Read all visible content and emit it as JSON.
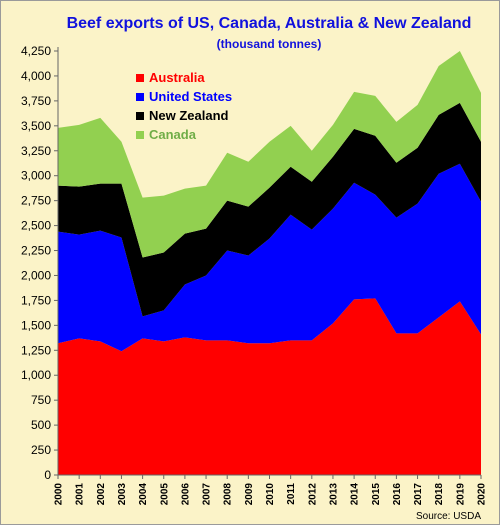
{
  "chart_data": {
    "type": "area",
    "stacked": true,
    "title": "Beef exports of US, Canada, Australia & New Zealand",
    "subtitle": "(thousand tonnes)",
    "source": "Source: USDA",
    "x": [
      2000,
      2001,
      2002,
      2003,
      2004,
      2005,
      2006,
      2007,
      2008,
      2009,
      2010,
      2011,
      2012,
      2013,
      2014,
      2015,
      2016,
      2017,
      2018,
      2019,
      2020
    ],
    "ylim": [
      0,
      4250
    ],
    "yticks": [
      "0",
      "250",
      "500",
      "750",
      "1,000",
      "1,250",
      "1,500",
      "1,750",
      "2,000",
      "2,250",
      "2,500",
      "2,750",
      "3,000",
      "3,250",
      "3,500",
      "3,750",
      "4,000",
      "4,250"
    ],
    "grid": false,
    "legend_position": "top-left",
    "series": [
      {
        "name": "Australia",
        "color": "#ff0000",
        "values": [
          1320,
          1370,
          1340,
          1240,
          1370,
          1340,
          1380,
          1350,
          1350,
          1320,
          1320,
          1350,
          1350,
          1520,
          1760,
          1770,
          1420,
          1420,
          1580,
          1740,
          1410
        ]
      },
      {
        "name": "United States",
        "color": "#0000ff",
        "values": [
          1120,
          1040,
          1110,
          1140,
          220,
          310,
          530,
          650,
          900,
          880,
          1050,
          1260,
          1110,
          1150,
          1170,
          1040,
          1160,
          1300,
          1440,
          1380,
          1330
        ]
      },
      {
        "name": "New Zealand",
        "color": "#000000",
        "values": [
          460,
          480,
          470,
          540,
          590,
          580,
          510,
          470,
          500,
          490,
          510,
          480,
          480,
          520,
          540,
          590,
          550,
          560,
          590,
          610,
          600
        ]
      },
      {
        "name": "Canada",
        "color": "#92d050",
        "values": [
          580,
          620,
          660,
          420,
          600,
          570,
          450,
          430,
          480,
          450,
          460,
          410,
          310,
          320,
          370,
          400,
          410,
          430,
          490,
          520,
          490
        ]
      }
    ]
  }
}
